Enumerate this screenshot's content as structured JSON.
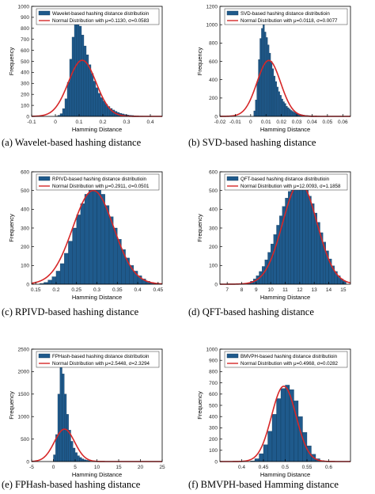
{
  "theme": {
    "bar_fill": "#1f5a8c",
    "bar_stroke": "#0f3352",
    "curve": "#d62728",
    "axis": "#000000"
  },
  "chart_data": [
    {
      "type": "bar",
      "caption": "(a) Wavelet-based hashing distance",
      "xlabel": "Hamming Distance",
      "ylabel": "Frequency",
      "xlim": [
        -0.1,
        0.45
      ],
      "ylim": [
        0,
        1000
      ],
      "xticks": [
        -0.1,
        0,
        0.1,
        0.2,
        0.3,
        0.4
      ],
      "xtick_labels": [
        "-0.1",
        "0",
        "0.1",
        "0.2",
        "0.3",
        "0.4"
      ],
      "yticks": [
        0,
        100,
        200,
        300,
        400,
        500,
        600,
        700,
        800,
        900,
        1000
      ],
      "ytick_labels": [
        "0",
        "100",
        "200",
        "300",
        "400",
        "500",
        "600",
        "700",
        "800",
        "900",
        "1000"
      ],
      "legend": [
        "Wavelet-based hashing distance distributioin",
        "Normal Distribution with μ=0.1130, σ=0.0583"
      ],
      "legend_position": "top-right",
      "histogram": {
        "bins": [
          0.0,
          0.01,
          0.02,
          0.03,
          0.04,
          0.05,
          0.06,
          0.07,
          0.08,
          0.09,
          0.1,
          0.11,
          0.12,
          0.13,
          0.14,
          0.15,
          0.16,
          0.17,
          0.18,
          0.19,
          0.2,
          0.21,
          0.22,
          0.23,
          0.24,
          0.25,
          0.26,
          0.27,
          0.28,
          0.29,
          0.3,
          0.31,
          0.32,
          0.33,
          0.34,
          0.35,
          0.36,
          0.37,
          0.38,
          0.39,
          0.4,
          0.41
        ],
        "counts": [
          3,
          10,
          25,
          70,
          160,
          310,
          520,
          720,
          840,
          870,
          820,
          740,
          640,
          560,
          470,
          390,
          320,
          260,
          210,
          170,
          140,
          110,
          90,
          72,
          58,
          46,
          36,
          28,
          22,
          17,
          13,
          10,
          8,
          6,
          4,
          3,
          3,
          2,
          1,
          1,
          1,
          0
        ],
        "bin_width": 0.01
      },
      "normal": {
        "mu": 0.113,
        "sigma": 0.0583,
        "peak": 510
      }
    },
    {
      "type": "bar",
      "caption": "(b) SVD-based hashing distance",
      "xlabel": "Hamming Distance",
      "ylabel": "Frequency",
      "xlim": [
        -0.02,
        0.065
      ],
      "ylim": [
        0,
        1200
      ],
      "xticks": [
        -0.02,
        -0.01,
        0,
        0.01,
        0.02,
        0.03,
        0.04,
        0.05,
        0.06
      ],
      "xtick_labels": [
        "-0.02",
        "-0.01",
        "0",
        "0.01",
        "0.02",
        "0.03",
        "0.04",
        "0.05",
        "0.06"
      ],
      "yticks": [
        0,
        200,
        400,
        600,
        800,
        1000,
        1200
      ],
      "ytick_labels": [
        "0",
        "200",
        "400",
        "600",
        "800",
        "1000",
        "1200"
      ],
      "legend": [
        "SVD-based hashing distance distributioin",
        "Normal Distribution with μ=0.0118, σ=0.0077"
      ],
      "legend_position": "top-right",
      "histogram": {
        "bins": [
          0.002,
          0.003,
          0.004,
          0.005,
          0.006,
          0.007,
          0.008,
          0.009,
          0.01,
          0.011,
          0.012,
          0.013,
          0.014,
          0.015,
          0.016,
          0.017,
          0.018,
          0.019,
          0.02,
          0.021,
          0.022,
          0.023,
          0.024,
          0.025,
          0.026,
          0.027,
          0.028,
          0.029,
          0.03,
          0.031,
          0.032,
          0.033,
          0.034,
          0.035,
          0.036,
          0.037,
          0.038,
          0.039,
          0.04,
          0.042,
          0.044,
          0.046,
          0.048,
          0.05,
          0.052
        ],
        "counts": [
          60,
          180,
          380,
          620,
          850,
          960,
          1000,
          920,
          860,
          780,
          690,
          600,
          520,
          440,
          380,
          320,
          270,
          230,
          190,
          160,
          140,
          110,
          95,
          80,
          65,
          55,
          45,
          38,
          32,
          26,
          22,
          18,
          15,
          12,
          10,
          9,
          8,
          7,
          6,
          5,
          4,
          3,
          2,
          2,
          1
        ],
        "bin_width": 0.001
      },
      "normal": {
        "mu": 0.0118,
        "sigma": 0.0077,
        "peak": 610
      }
    },
    {
      "type": "bar",
      "caption": "(c) RPIVD-based hashing distance",
      "xlabel": "Hamming Distance",
      "ylabel": "Frequency",
      "xlim": [
        0.14,
        0.46
      ],
      "ylim": [
        0,
        600
      ],
      "xticks": [
        0.15,
        0.2,
        0.25,
        0.3,
        0.35,
        0.4,
        0.45
      ],
      "xtick_labels": [
        "0.15",
        "0.2",
        "0.25",
        "0.3",
        "0.35",
        "0.4",
        "0.45"
      ],
      "yticks": [
        0,
        100,
        200,
        300,
        400,
        500,
        600
      ],
      "ytick_labels": [
        "0",
        "100",
        "200",
        "300",
        "400",
        "500",
        "600"
      ],
      "legend": [
        "RPIVD-based hashing distance distributioin",
        "Normal Distribution with μ=0.2911, σ=0.0501"
      ],
      "legend_position": "top-right",
      "histogram": {
        "bins": [
          0.16,
          0.17,
          0.18,
          0.19,
          0.2,
          0.21,
          0.22,
          0.23,
          0.24,
          0.25,
          0.26,
          0.27,
          0.28,
          0.29,
          0.3,
          0.31,
          0.32,
          0.33,
          0.34,
          0.35,
          0.36,
          0.37,
          0.38,
          0.39,
          0.4,
          0.41,
          0.42,
          0.43,
          0.44
        ],
        "counts": [
          4,
          10,
          22,
          40,
          70,
          110,
          165,
          230,
          300,
          370,
          430,
          480,
          530,
          560,
          520,
          480,
          420,
          360,
          300,
          240,
          185,
          140,
          100,
          70,
          45,
          28,
          16,
          9,
          4
        ],
        "bin_width": 0.01
      },
      "normal": {
        "mu": 0.2911,
        "sigma": 0.0501,
        "peak": 500
      }
    },
    {
      "type": "bar",
      "caption": "(d) QFT-based hashing distance",
      "xlabel": "Hamming Distance",
      "ylabel": "Frequency",
      "xlim": [
        6.5,
        15.5
      ],
      "ylim": [
        0,
        600
      ],
      "xticks": [
        7,
        8,
        9,
        10,
        11,
        12,
        13,
        14,
        15
      ],
      "xtick_labels": [
        "7",
        "8",
        "9",
        "10",
        "11",
        "12",
        "13",
        "14",
        "15"
      ],
      "yticks": [
        0,
        100,
        200,
        300,
        400,
        500,
        600
      ],
      "ytick_labels": [
        "0",
        "100",
        "200",
        "300",
        "400",
        "500",
        "600"
      ],
      "legend": [
        "QFT-based hashing distance distributioin",
        "Normal Distribution with μ=12.0093, σ=1.1858"
      ],
      "legend_position": "top-right",
      "histogram": {
        "bins": [
          8.4,
          8.6,
          8.8,
          9.0,
          9.2,
          9.4,
          9.6,
          9.8,
          10.0,
          10.2,
          10.4,
          10.6,
          10.8,
          11.0,
          11.2,
          11.4,
          11.6,
          11.8,
          12.0,
          12.2,
          12.4,
          12.6,
          12.8,
          13.0,
          13.2,
          13.4,
          13.6,
          13.8,
          14.0,
          14.2,
          14.4,
          14.6,
          14.8,
          15.0
        ],
        "counts": [
          8,
          16,
          28,
          45,
          68,
          95,
          130,
          170,
          215,
          265,
          315,
          365,
          415,
          460,
          495,
          525,
          540,
          550,
          545,
          530,
          505,
          470,
          430,
          380,
          330,
          275,
          225,
          178,
          135,
          98,
          68,
          45,
          28,
          16
        ],
        "bin_width": 0.2
      },
      "normal": {
        "mu": 12.0093,
        "sigma": 1.1858,
        "peak": 540
      }
    },
    {
      "type": "bar",
      "caption": "(e) FPHash-based hashing distance",
      "xlabel": "Hamming Distance",
      "ylabel": "Frequency",
      "xlim": [
        -5,
        25
      ],
      "ylim": [
        0,
        2500
      ],
      "xticks": [
        -5,
        0,
        5,
        10,
        15,
        20,
        25
      ],
      "xtick_labels": [
        "-5",
        "0",
        "5",
        "10",
        "15",
        "20",
        "25"
      ],
      "yticks": [
        0,
        500,
        1000,
        1500,
        2000,
        2500
      ],
      "ytick_labels": [
        "0",
        "500",
        "1000",
        "1500",
        "2000",
        "2500"
      ],
      "legend": [
        "FPHash-based hashing distance distributioin",
        "Normal Distribution with μ=2.5448, σ=2.3294"
      ],
      "legend_position": "top-right",
      "histogram": {
        "bins": [
          0.0,
          0.5,
          1.0,
          1.5,
          2.0,
          2.5,
          3.0,
          3.5,
          4.0,
          4.5,
          5.0,
          5.5,
          6.0,
          6.5,
          7.0,
          7.5,
          8.0,
          9.0,
          10.0,
          11.0
        ],
        "counts": [
          150,
          600,
          1500,
          2100,
          1950,
          1500,
          1050,
          700,
          450,
          300,
          200,
          130,
          90,
          60,
          40,
          28,
          18,
          10,
          6,
          3
        ],
        "bin_width": 0.5
      },
      "normal": {
        "mu": 2.5448,
        "sigma": 2.3294,
        "peak": 720
      }
    },
    {
      "type": "bar",
      "caption": "(f) BMVPH-based Hamming distance",
      "xlabel": "Hamming Distance",
      "ylabel": "Frequency",
      "xlim": [
        0.35,
        0.65
      ],
      "ylim": [
        0,
        1000
      ],
      "xticks": [
        0.4,
        0.45,
        0.5,
        0.55,
        0.6
      ],
      "xtick_labels": [
        "0.4",
        "0.45",
        "0.5",
        "0.55",
        "0.6"
      ],
      "yticks": [
        0,
        100,
        200,
        300,
        400,
        500,
        600,
        700,
        800,
        900,
        1000
      ],
      "ytick_labels": [
        "0",
        "100",
        "200",
        "300",
        "400",
        "500",
        "600",
        "700",
        "800",
        "900",
        "1000"
      ],
      "legend": [
        "BMVPH-based hashing distance distributioin",
        "Normal Distribution with μ=0.4968, σ=0.0282"
      ],
      "legend_position": "top-right",
      "histogram": {
        "bins": [
          0.42,
          0.43,
          0.44,
          0.45,
          0.46,
          0.47,
          0.48,
          0.49,
          0.5,
          0.51,
          0.52,
          0.53,
          0.54,
          0.55,
          0.56,
          0.57,
          0.58
        ],
        "counts": [
          6,
          25,
          70,
          150,
          270,
          420,
          560,
          650,
          680,
          640,
          540,
          400,
          260,
          140,
          65,
          25,
          8
        ],
        "bin_width": 0.01
      },
      "normal": {
        "mu": 0.4968,
        "sigma": 0.0282,
        "peak": 670
      }
    }
  ]
}
